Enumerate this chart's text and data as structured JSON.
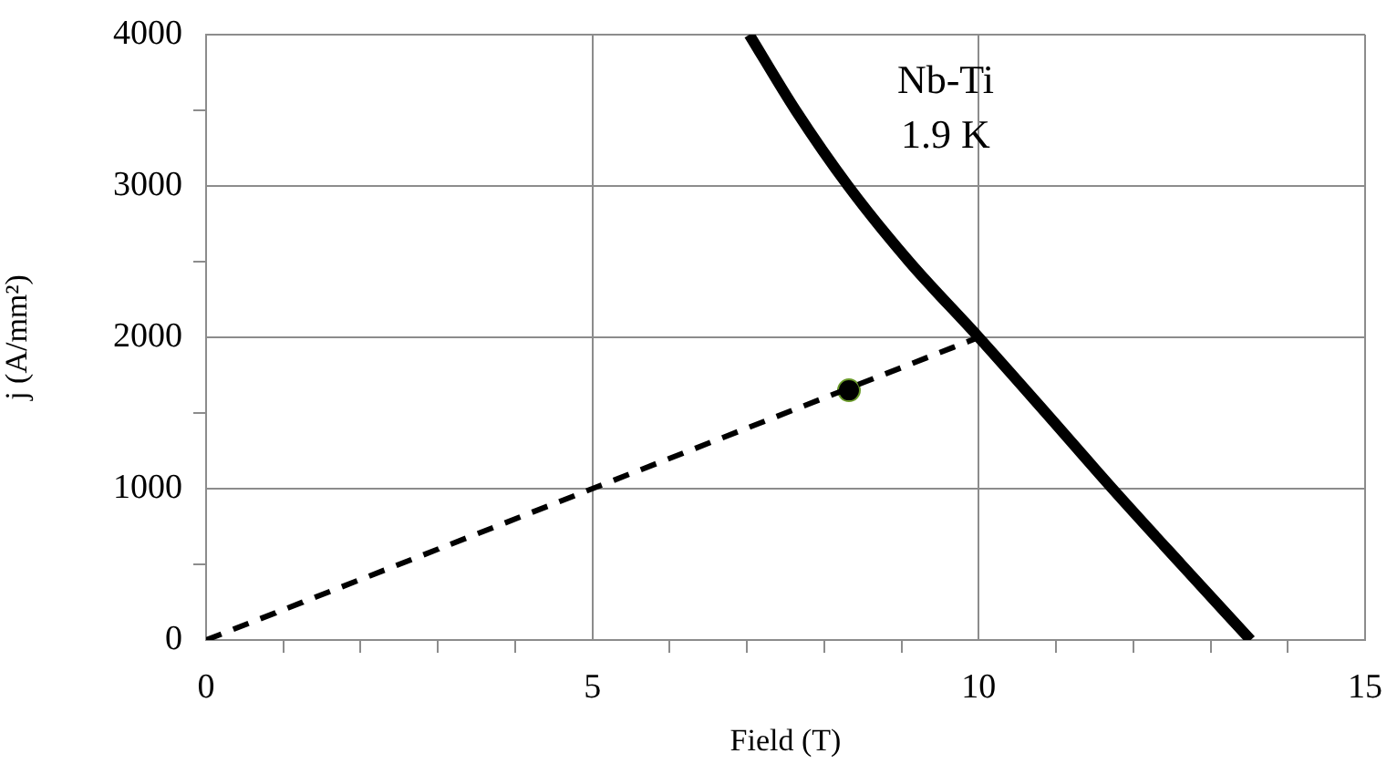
{
  "chart_data": {
    "type": "line",
    "xlabel": "Field (T)",
    "ylabel": "j (A/mm²)",
    "xlim": [
      0,
      15
    ],
    "ylim": [
      0,
      4000
    ],
    "xticks": [
      0,
      {
        "value": 1,
        "label": null
      },
      {
        "value": 2,
        "label": null
      },
      {
        "value": 3,
        "label": null
      },
      {
        "value": 4,
        "label": null
      },
      5,
      {
        "value": 6,
        "label": null
      },
      {
        "value": 7,
        "label": null
      },
      {
        "value": 8,
        "label": null
      },
      {
        "value": 9,
        "label": null
      },
      10,
      {
        "value": 11,
        "label": null
      },
      {
        "value": 12,
        "label": null
      },
      {
        "value": 13,
        "label": null
      },
      {
        "value": 14,
        "label": null
      },
      15
    ],
    "yticks": [
      0,
      {
        "value": 500,
        "label": null
      },
      1000,
      {
        "value": 1500,
        "label": null
      },
      2000,
      {
        "value": 2500,
        "label": null
      },
      3000,
      {
        "value": 3500,
        "label": null
      },
      4000
    ],
    "grid": true,
    "legend": false,
    "annotations": [
      "Nb-Ti",
      "1.9 K"
    ],
    "series": [
      {
        "color": "#000000",
        "marker": "none",
        "line_style": "solid",
        "x": [
          7.03,
          7.63,
          8.31,
          9.1,
          10,
          10.87,
          11.73,
          12.62,
          13.52
        ],
        "values": [
          4000,
          3500,
          3000,
          2500,
          2000,
          1500,
          1000,
          500,
          0
        ]
      },
      {
        "color": "#000000",
        "marker": "none",
        "line_style": "dashed",
        "x": [
          0,
          10
        ],
        "values": [
          0,
          2000
        ]
      },
      {
        "type": "scatter",
        "color": "#000000",
        "marker": "circle",
        "x": [
          8.32
        ],
        "values": [
          1650
        ]
      }
    ]
  }
}
